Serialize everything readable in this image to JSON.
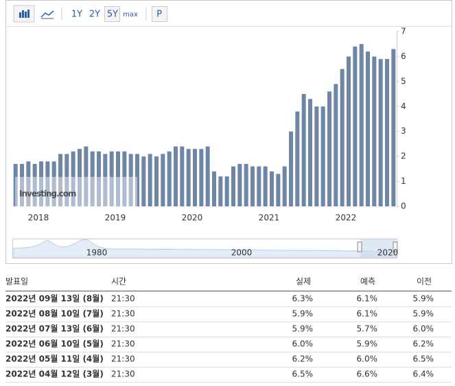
{
  "toolbar": {
    "ranges": [
      "1Y",
      "2Y",
      "5Y",
      "max"
    ],
    "selected": "5Y",
    "extra": "P"
  },
  "chart_data": {
    "type": "bar",
    "color": "#6d86a8",
    "categories": [
      null,
      null,
      null,
      null,
      "2018",
      null,
      null,
      null,
      null,
      null,
      null,
      null,
      null,
      null,
      null,
      null,
      "2019",
      null,
      null,
      null,
      null,
      null,
      null,
      null,
      null,
      null,
      null,
      null,
      "2020",
      null,
      null,
      null,
      null,
      null,
      null,
      null,
      null,
      null,
      null,
      null,
      "2021",
      null,
      null,
      null,
      null,
      null,
      null,
      null,
      null,
      null,
      null,
      null,
      "2022",
      null,
      null,
      null,
      null,
      null,
      null,
      null
    ],
    "values": [
      1.7,
      1.7,
      1.8,
      1.7,
      1.8,
      1.8,
      1.8,
      2.1,
      2.1,
      2.2,
      2.3,
      2.4,
      2.2,
      2.2,
      2.1,
      2.2,
      2.2,
      2.2,
      2.1,
      2.1,
      2.0,
      2.1,
      2.0,
      2.1,
      2.2,
      2.4,
      2.4,
      2.3,
      2.3,
      2.3,
      2.4,
      1.4,
      1.2,
      1.2,
      1.6,
      1.7,
      1.7,
      1.6,
      1.6,
      1.6,
      1.4,
      1.3,
      1.6,
      3.0,
      3.8,
      4.5,
      4.3,
      4.0,
      4.0,
      4.6,
      4.9,
      5.5,
      6.0,
      6.4,
      6.5,
      6.2,
      6.0,
      5.9,
      5.9,
      6.3
    ],
    "ylim": [
      0,
      7
    ],
    "yticks": [
      0,
      1,
      2,
      3,
      4,
      5,
      6,
      7
    ],
    "grid": false,
    "watermark": "Investing.com"
  },
  "navigator": {
    "labels": [
      "1980",
      "2000",
      "2020"
    ]
  },
  "table": {
    "header": [
      "발표일",
      "시간",
      "실제",
      "예측",
      "이전"
    ],
    "rows": [
      [
        "2022년 09월 13일 (8월)",
        "21:30",
        "6.3%",
        "6.1%",
        "5.9%"
      ],
      [
        "2022년 08월 10일 (7월)",
        "21:30",
        "5.9%",
        "6.1%",
        "5.9%"
      ],
      [
        "2022년 07월 13일 (6월)",
        "21:30",
        "5.9%",
        "5.7%",
        "6.0%"
      ],
      [
        "2022년 06월 10일 (5월)",
        "21:30",
        "6.0%",
        "5.9%",
        "6.2%"
      ],
      [
        "2022년 05월 11일 (4월)",
        "21:30",
        "6.2%",
        "6.0%",
        "6.5%"
      ],
      [
        "2022년 04월 12일 (3월)",
        "21:30",
        "6.5%",
        "6.6%",
        "6.4%"
      ]
    ],
    "actual_colors": [
      "#c0392b",
      "#2e86c1",
      "#c0392b",
      "#c0392b",
      "#c0392b",
      "#2e86c1"
    ]
  }
}
